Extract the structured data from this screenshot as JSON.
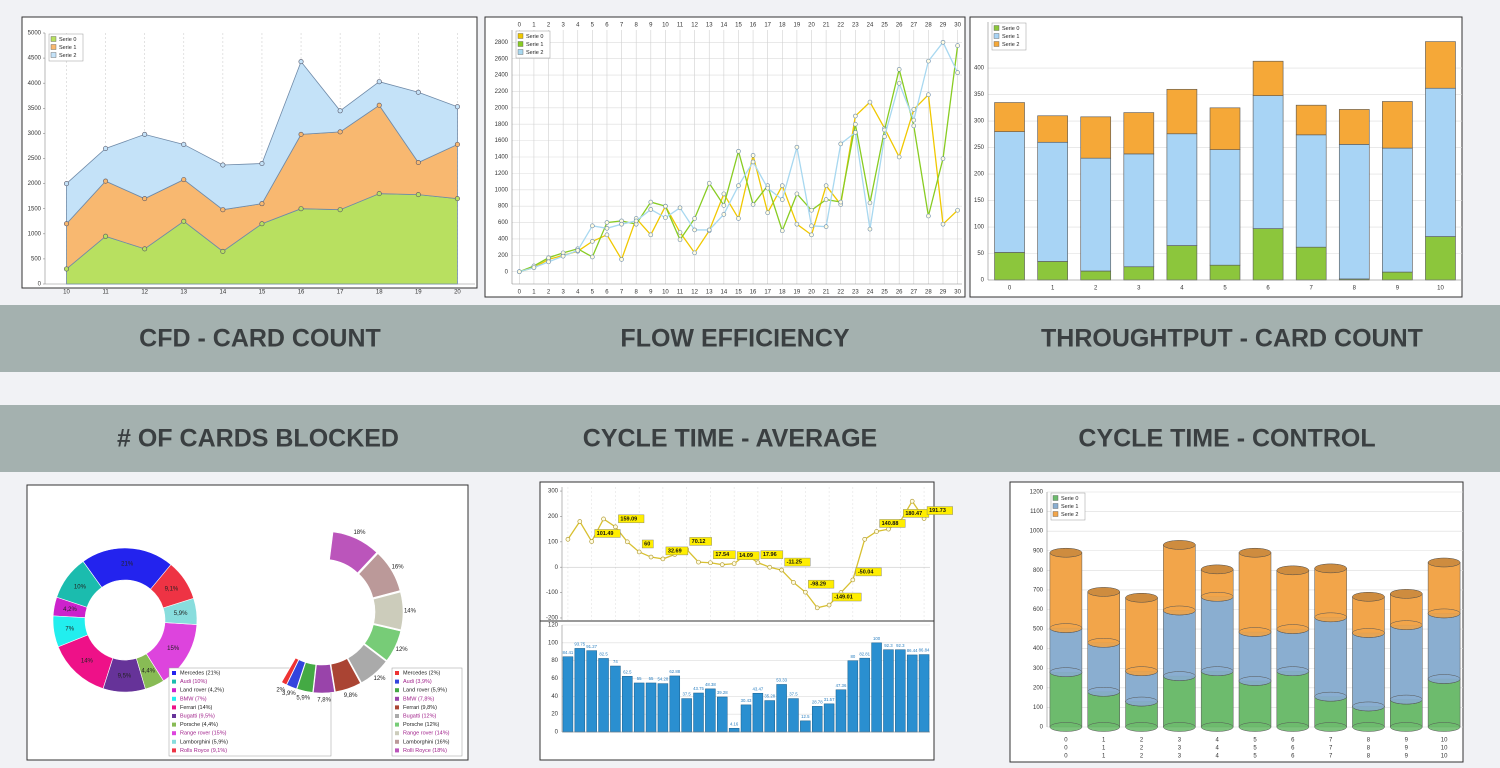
{
  "chart_data": [
    {
      "type": "stacked-area",
      "title": "CFD - CARD COUNT",
      "x": [
        10,
        11,
        12,
        13,
        14,
        15,
        16,
        17,
        18,
        19,
        20
      ],
      "xlim": [
        9.45,
        20.45
      ],
      "xticks": [
        10,
        11,
        12,
        13,
        14,
        15,
        16,
        17,
        18,
        19,
        20
      ],
      "ylim": [
        0,
        5000
      ],
      "yticks": [
        0,
        500,
        1000,
        1500,
        2000,
        2500,
        3000,
        3500,
        4000,
        4500,
        5000
      ],
      "grid": "x",
      "legend": "top-left",
      "series": [
        {
          "name": "Serie 0",
          "color": "#b8e060",
          "values": [
            300,
            950,
            700,
            1250,
            650,
            1200,
            1500,
            1480,
            1800,
            1780,
            1700
          ]
        },
        {
          "name": "Serie 1",
          "color": "#f8b870",
          "values": [
            900,
            1100,
            1000,
            830,
            830,
            400,
            1480,
            1550,
            1760,
            640,
            1080
          ]
        },
        {
          "name": "Serie 2",
          "color": "#c4e2f8",
          "values": [
            800,
            650,
            1280,
            700,
            890,
            800,
            1450,
            420,
            470,
            1400,
            750
          ]
        }
      ]
    },
    {
      "type": "line",
      "title": "FLOW EFFICIENCY",
      "x": [
        0,
        1,
        2,
        3,
        4,
        5,
        6,
        7,
        8,
        9,
        10,
        11,
        12,
        13,
        14,
        15,
        16,
        17,
        18,
        19,
        20,
        21,
        22,
        23,
        24,
        25,
        26,
        27,
        28,
        29,
        30
      ],
      "xlim": [
        -0.5,
        30.3
      ],
      "xticks": [
        0,
        1,
        2,
        3,
        4,
        5,
        6,
        7,
        8,
        9,
        10,
        11,
        12,
        13,
        14,
        15,
        16,
        17,
        18,
        19,
        20,
        21,
        22,
        23,
        24,
        25,
        26,
        27,
        28,
        29,
        30
      ],
      "ylim": [
        -150,
        2950
      ],
      "yticks": [
        0,
        200,
        400,
        600,
        800,
        1000,
        1200,
        1400,
        1600,
        1800,
        2000,
        2200,
        2400,
        2600,
        2800
      ],
      "grid": "both",
      "legend": "top-left",
      "series": [
        {
          "name": "Serie 0",
          "color": "#f0c800",
          "values": [
            0,
            50,
            150,
            200,
            250,
            370,
            450,
            150,
            650,
            450,
            800,
            480,
            230,
            500,
            950,
            650,
            1420,
            720,
            1050,
            580,
            450,
            1050,
            820,
            1900,
            2070,
            1750,
            1400,
            1980,
            2160,
            580,
            750
          ]
        },
        {
          "name": "Serie 1",
          "color": "#88cc22",
          "values": [
            0,
            70,
            170,
            230,
            280,
            180,
            600,
            620,
            580,
            850,
            800,
            390,
            650,
            1080,
            810,
            1470,
            820,
            1050,
            500,
            950,
            750,
            880,
            850,
            1800,
            840,
            1730,
            2470,
            1780,
            680,
            1380,
            2760
          ]
        },
        {
          "name": "Serie 2",
          "color": "#a8d8f0",
          "values": [
            0,
            50,
            120,
            190,
            260,
            560,
            530,
            580,
            620,
            760,
            660,
            780,
            510,
            510,
            700,
            1050,
            1340,
            1020,
            880,
            1520,
            560,
            550,
            1560,
            1700,
            520,
            1650,
            2300,
            1850,
            2570,
            2800,
            2430
          ]
        }
      ]
    },
    {
      "type": "stacked-bar",
      "title": "THROUGHTPUT - CARD COUNT",
      "categories": [
        "0",
        "1",
        "2",
        "3",
        "4",
        "5",
        "6",
        "7",
        "8",
        "9",
        "10"
      ],
      "ylim": [
        0,
        487
      ],
      "yticks": [
        0,
        50,
        100,
        150,
        200,
        250,
        300,
        350,
        400
      ],
      "grid": "y",
      "legend": "top-left",
      "series": [
        {
          "name": "Serie 0",
          "color": "#8cc63c",
          "values": [
            52,
            35,
            17,
            25,
            65,
            28,
            97,
            62,
            2,
            15,
            82
          ]
        },
        {
          "name": "Serie 1",
          "color": "#a8d4f5",
          "values": [
            228,
            225,
            213,
            213,
            211,
            218,
            251,
            212,
            254,
            234,
            280
          ]
        },
        {
          "name": "Serie 2",
          "color": "#f5a838",
          "values": [
            55,
            50,
            78,
            78,
            84,
            79,
            65,
            56,
            66,
            88,
            88
          ]
        }
      ]
    },
    {
      "type": "donut",
      "title": "# OF CARDS BLOCKED",
      "categories": [
        "Mercedes (21%)",
        "Audi (10%)",
        "Land rover (4,2%)",
        "BMW (7%)",
        "Ferrari (14%)",
        "Bugatti (9,5%)",
        "Porsche (4,4%)",
        "Range rover (15%)",
        "Lamborghini (5,9%)",
        "Rolls Royce (9,1%)"
      ],
      "values": [
        21,
        10,
        4.2,
        7,
        14,
        9.5,
        4.4,
        15,
        5.9,
        9.1
      ],
      "value_labels": [
        "21%",
        "10%",
        "4,2%",
        "7%",
        "14%",
        "9,5%",
        "4,4%",
        "15%",
        "5,9%",
        "9,1%"
      ],
      "colors": [
        "#2323ee",
        "#1bbcae",
        "#cc22cc",
        "#22eeee",
        "#ee1188",
        "#663399",
        "#88bb55",
        "#dd44dd",
        "#88dddd",
        "#ee3344"
      ]
    },
    {
      "type": "donut",
      "categories": [
        "Mercedes (2%)",
        "Audi (3,9%)",
        "Land rover (5,9%)",
        "BMW (7,8%)",
        "Ferrari (9,8%)",
        "Bugatti (12%)",
        "Porsche (12%)",
        "Range rover (14%)",
        "Lamborghini (16%)",
        "Rolli Royce (18%)"
      ],
      "values": [
        2,
        3.9,
        5.9,
        7.8,
        9.8,
        12,
        12,
        14,
        16,
        18
      ],
      "value_labels": [
        "2%",
        "3,9%",
        "5,9%",
        "7,8%",
        "9,8%",
        "12%",
        "12%",
        "14%",
        "16%",
        "18%"
      ],
      "colors": [
        "#ee3333",
        "#3344dd",
        "#44aa44",
        "#9944aa",
        "#aa4433",
        "#aaaaaa",
        "#77cc77",
        "#ccccbb",
        "#bb9999",
        "#bb55bb"
      ]
    },
    {
      "type": "line",
      "title": "CYCLE TIME - AVERAGE",
      "color": "#d8c030",
      "values": [
        110,
        180,
        101.49,
        190,
        159.09,
        100,
        60,
        40,
        32.69,
        50,
        70.12,
        20,
        17.54,
        10,
        14.09,
        50,
        17.96,
        0,
        -11.25,
        -60,
        -98.29,
        -160,
        -149.01,
        -100,
        -50.04,
        110,
        140.88,
        150,
        180.47,
        260,
        191.73
      ],
      "value_labels": [
        null,
        null,
        "101.49",
        null,
        "159.09",
        null,
        "60",
        null,
        "32.69",
        null,
        "70.12",
        null,
        "17.54",
        null,
        "14.09",
        null,
        "17.96",
        null,
        "-11.25",
        null,
        "-98.29",
        null,
        "-149.01",
        null,
        "-50.04",
        null,
        "140.88",
        null,
        "180.47",
        null,
        "191.73"
      ],
      "ylim": [
        -208,
        316
      ],
      "yticks": [
        -200,
        -100,
        0,
        100,
        200,
        300
      ],
      "grid": "x"
    },
    {
      "type": "bar",
      "color": "#2a8fd0",
      "values": [
        84.41,
        93.75,
        91.27,
        82.5,
        74,
        62.5,
        55,
        55,
        54.28,
        62.88,
        37.5,
        43.75,
        48.38,
        39.28,
        4.16,
        30.43,
        43.47,
        35.28,
        53.33,
        37.5,
        12.5,
        28.78,
        31.57,
        47.36,
        80,
        82.81,
        100,
        92.3,
        92.3,
        86.44,
        86.84
      ],
      "ylim": [
        0,
        120
      ],
      "yticks": [
        0,
        20,
        40,
        60,
        80,
        100,
        120
      ],
      "grid": "y"
    },
    {
      "type": "stacked-cylinder",
      "title": "CYCLE TIME - CONTROL",
      "categories": [
        "0",
        "1",
        "2",
        "3",
        "4",
        "5",
        "6",
        "7",
        "8",
        "9",
        "10"
      ],
      "ylim": [
        0,
        1200
      ],
      "yticks": [
        0,
        100,
        200,
        300,
        400,
        500,
        600,
        700,
        800,
        900,
        1000,
        1100,
        1200
      ],
      "grid": "y",
      "legend": "top-left",
      "series": [
        {
          "name": "Serie 0",
          "color": "#6dbb6d",
          "values": [
            280,
            180,
            130,
            260,
            285,
            235,
            285,
            155,
            105,
            140,
            245
          ]
        },
        {
          "name": "Serie 1",
          "color": "#8aaed0",
          "values": [
            225,
            250,
            155,
            335,
            380,
            250,
            215,
            405,
            375,
            380,
            335
          ]
        },
        {
          "name": "Serie 2",
          "color": "#f2a54a",
          "values": [
            385,
            260,
            375,
            335,
            140,
            405,
            300,
            250,
            185,
            160,
            260
          ]
        }
      ]
    }
  ]
}
